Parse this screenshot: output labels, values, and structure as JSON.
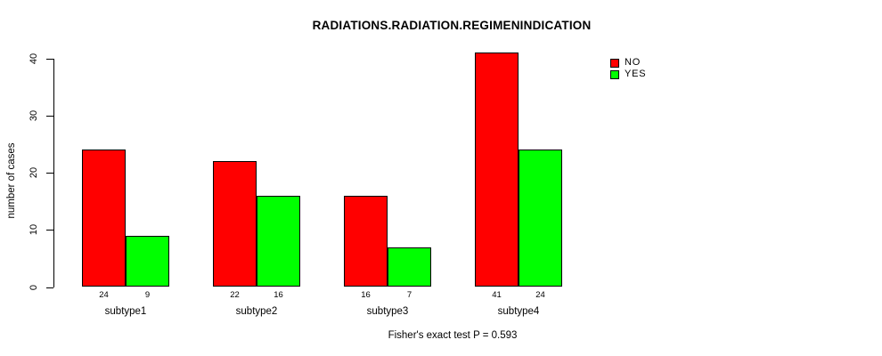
{
  "chart_data": {
    "type": "bar",
    "title": "RADIATIONS.RADIATION.REGIMENINDICATION",
    "ylabel": "number of cases",
    "xlabel": "",
    "categories": [
      "subtype1",
      "subtype2",
      "subtype3",
      "subtype4"
    ],
    "series": [
      {
        "name": "NO",
        "color": "#ff0000",
        "values": [
          24,
          22,
          16,
          41
        ]
      },
      {
        "name": "YES",
        "color": "#00ff00",
        "values": [
          9,
          16,
          7,
          24
        ]
      }
    ],
    "yticks": [
      0,
      10,
      20,
      30,
      40
    ],
    "ylim": [
      0,
      41
    ],
    "grid": false,
    "legend_position": "top-right",
    "bar_border_color": "#000000",
    "annotation": "Fisher's exact test P = 0.593"
  }
}
